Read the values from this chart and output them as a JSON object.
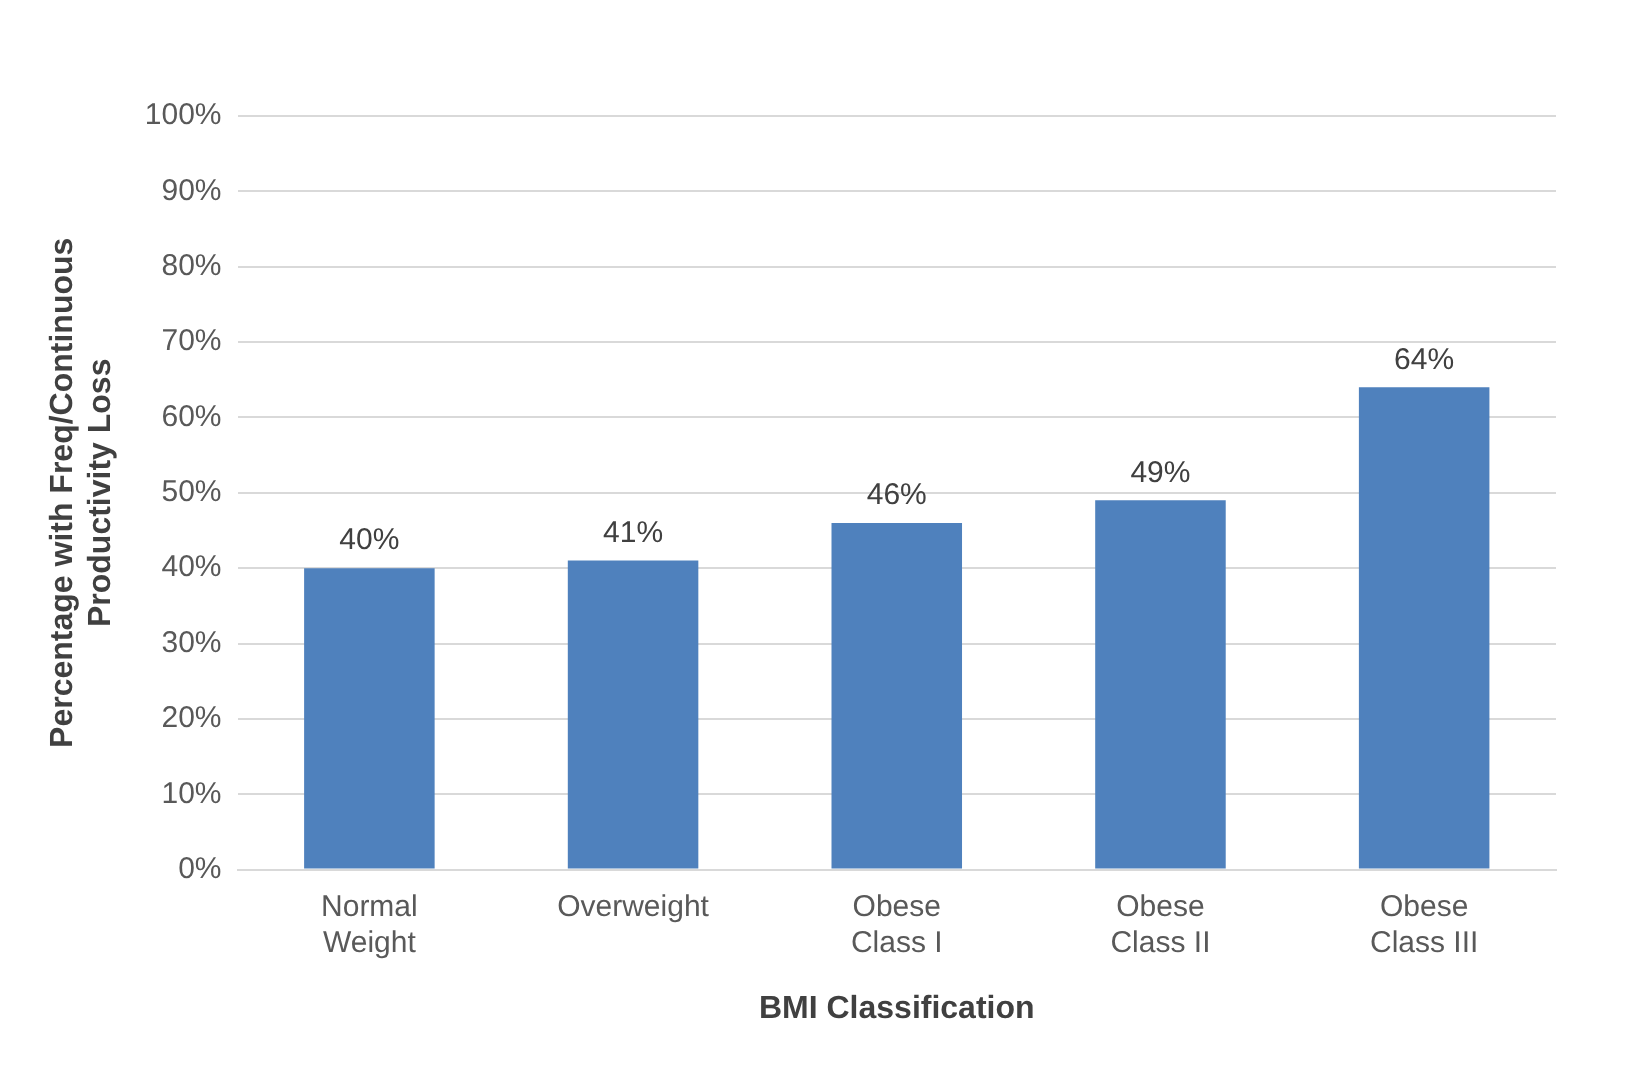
{
  "chart_data": {
    "type": "bar",
    "xlabel": "BMI Classification",
    "ylabel": "Percentage with Freq/Continuous Productivity Loss",
    "categories": [
      "Normal Weight",
      "Overweight",
      "Obese Class I",
      "Obese Class II",
      "Obese Class III"
    ],
    "values": [
      40,
      41,
      46,
      49,
      64
    ],
    "value_labels": [
      "40%",
      "41%",
      "46%",
      "49%",
      "64%"
    ],
    "color": "#4f81bd",
    "ylim": [
      0,
      100
    ],
    "yticks": [
      {
        "value": 0,
        "label": "0%"
      },
      {
        "value": 10,
        "label": "10%"
      },
      {
        "value": 20,
        "label": "20%"
      },
      {
        "value": 30,
        "label": "30%"
      },
      {
        "value": 40,
        "label": "40%"
      },
      {
        "value": 50,
        "label": "50%"
      },
      {
        "value": 60,
        "label": "60%"
      },
      {
        "value": 70,
        "label": "70%"
      },
      {
        "value": 80,
        "label": "80%"
      },
      {
        "value": 90,
        "label": "90%"
      },
      {
        "value": 100,
        "label": "100%"
      }
    ],
    "grid": "y"
  }
}
